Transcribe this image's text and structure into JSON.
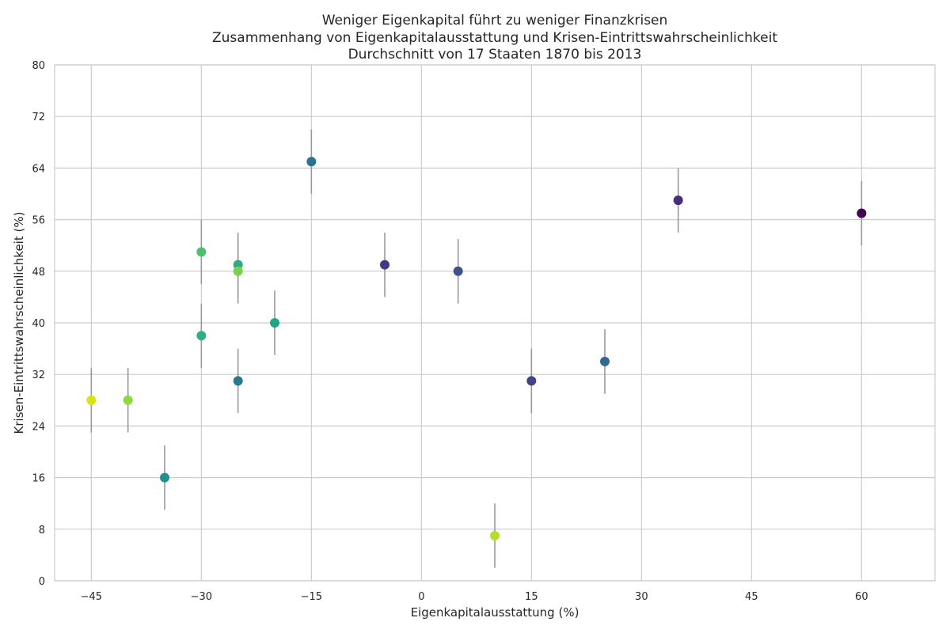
{
  "chart_data": {
    "type": "scatter",
    "title_lines": [
      "Weniger Eigenkapital führt zu weniger Finanzkrisen",
      "Zusammenhang von Eigenkapitalausstattung und Krisen-Eintrittswahrscheinlichkeit",
      "Durchschnitt von 17 Staaten 1870 bis 2013"
    ],
    "xlabel": "Eigenkapitalausstattung (%)",
    "ylabel": "Krisen-Eintrittswahrscheinlichkeit (%)",
    "xlim": [
      -50,
      70
    ],
    "ylim": [
      0,
      80
    ],
    "x_ticks": [
      -45,
      -30,
      -15,
      0,
      15,
      30,
      45,
      60
    ],
    "x_tick_labels": [
      "−45",
      "−30",
      "−15",
      "0",
      "15",
      "30",
      "45",
      "60"
    ],
    "y_ticks": [
      0,
      8,
      16,
      24,
      32,
      40,
      48,
      56,
      64,
      72,
      80
    ],
    "y_tick_labels": [
      "0",
      "8",
      "16",
      "24",
      "32",
      "40",
      "48",
      "56",
      "64",
      "72",
      "80"
    ],
    "grid": true,
    "colormap": "viridis",
    "error_bar_color": "#999999",
    "points": [
      {
        "x": -45,
        "y": 28,
        "err": 5,
        "color": "#d8e219"
      },
      {
        "x": -40,
        "y": 28,
        "err": 5,
        "color": "#8fd744"
      },
      {
        "x": -35,
        "y": 16,
        "err": 5,
        "color": "#21918c"
      },
      {
        "x": -30,
        "y": 51,
        "err": 5,
        "color": "#4ac16d"
      },
      {
        "x": -30,
        "y": 38,
        "err": 5,
        "color": "#2db27d"
      },
      {
        "x": -25,
        "y": 49,
        "err": 5,
        "color": "#28ae80"
      },
      {
        "x": -25,
        "y": 48,
        "err": 5,
        "color": "#7ad151"
      },
      {
        "x": -25,
        "y": 31,
        "err": 5,
        "color": "#2a788e"
      },
      {
        "x": -20,
        "y": 40,
        "err": 5,
        "color": "#20a386"
      },
      {
        "x": -15,
        "y": 65,
        "err": 5,
        "color": "#2c728e"
      },
      {
        "x": -5,
        "y": 49,
        "err": 5,
        "color": "#443983"
      },
      {
        "x": 5,
        "y": 48,
        "err": 5,
        "color": "#3b528b"
      },
      {
        "x": 10,
        "y": 7,
        "err": 5,
        "color": "#b5de2b"
      },
      {
        "x": 15,
        "y": 31,
        "err": 5,
        "color": "#414487"
      },
      {
        "x": 25,
        "y": 34,
        "err": 5,
        "color": "#31688e"
      },
      {
        "x": 35,
        "y": 59,
        "err": 5,
        "color": "#472d7b"
      },
      {
        "x": 60,
        "y": 57,
        "err": 5,
        "color": "#440154"
      }
    ]
  }
}
